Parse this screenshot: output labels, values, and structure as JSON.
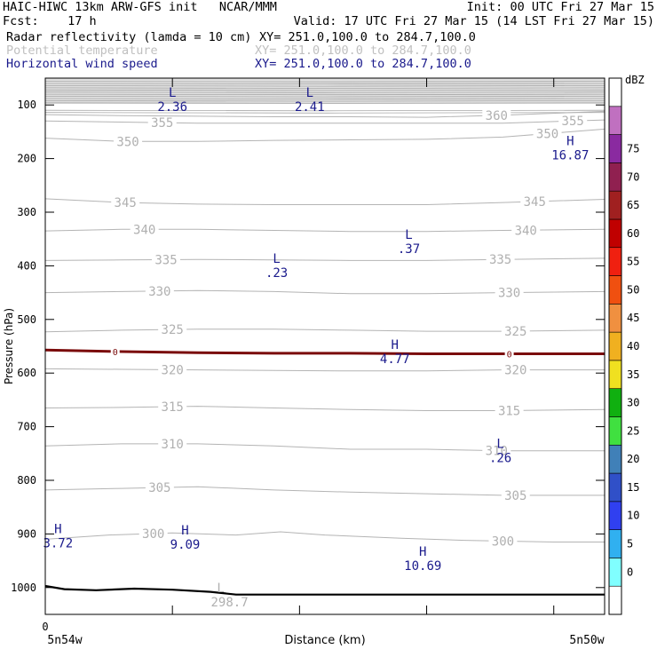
{
  "header": {
    "left_line1": "HAIC-HIWC 13km ARW-GFS init   NCAR/MMM",
    "left_line2": "Fcst:    17 h",
    "right_line1": "Init: 00 UTC Fri 27 Mar 15",
    "right_line2": "Valid: 17 UTC Fri 27 Mar 15 (14 LST Fri 27 Mar 15)",
    "fields": [
      {
        "name": "Radar reflectivity (lamda = 10 cm)",
        "xy": "XY= 251.0,100.0 to 284.7,100.0",
        "color": "#000000"
      },
      {
        "name": "Potential temperature",
        "xy": "XY= 251.0,100.0 to 284.7,100.0",
        "color": "#c0c0c0"
      },
      {
        "name": "Horizontal wind speed",
        "xy": "XY= 251.0,100.0 to 284.7,100.0",
        "color": "#1a1a8c"
      }
    ]
  },
  "chart_data": {
    "type": "contour-cross-section",
    "ylabel": "Pressure (hPa)",
    "xlabel": "Distance (km)",
    "x_tick_label": "0",
    "x_left_label": "5n54w",
    "x_right_label": "5n50w",
    "y_reversed": true,
    "ylim": [
      1050,
      50
    ],
    "xlim": [
      0,
      440
    ],
    "y_ticks": [
      100,
      200,
      300,
      400,
      500,
      600,
      700,
      800,
      900,
      1000
    ],
    "x_ticks": [
      0,
      100,
      200,
      300,
      400
    ],
    "theta_contours": [
      {
        "value": 300,
        "labels": [
          {
            "x": 85,
            "text": "300"
          },
          {
            "x": 360,
            "text": "300"
          }
        ],
        "points": [
          [
            0,
            910
          ],
          [
            50,
            902
          ],
          [
            100,
            898
          ],
          [
            150,
            902
          ],
          [
            185,
            896
          ],
          [
            220,
            902
          ],
          [
            280,
            908
          ],
          [
            330,
            912
          ],
          [
            400,
            915
          ],
          [
            440,
            915
          ]
        ]
      },
      {
        "value": 305,
        "labels": [
          {
            "x": 90,
            "text": "305"
          },
          {
            "x": 370,
            "text": "305"
          }
        ],
        "points": [
          [
            0,
            818
          ],
          [
            60,
            815
          ],
          [
            120,
            812
          ],
          [
            180,
            818
          ],
          [
            240,
            822
          ],
          [
            300,
            825
          ],
          [
            360,
            828
          ],
          [
            440,
            828
          ]
        ]
      },
      {
        "value": 310,
        "labels": [
          {
            "x": 100,
            "text": "310"
          },
          {
            "x": 355,
            "text": "310"
          }
        ],
        "points": [
          [
            0,
            736
          ],
          [
            60,
            732
          ],
          [
            120,
            732
          ],
          [
            180,
            736
          ],
          [
            240,
            742
          ],
          [
            300,
            742
          ],
          [
            360,
            745
          ],
          [
            440,
            745
          ]
        ]
      },
      {
        "value": 315,
        "labels": [
          {
            "x": 100,
            "text": "315"
          },
          {
            "x": 365,
            "text": "315"
          }
        ],
        "points": [
          [
            0,
            665
          ],
          [
            60,
            664
          ],
          [
            120,
            662
          ],
          [
            180,
            665
          ],
          [
            240,
            668
          ],
          [
            300,
            670
          ],
          [
            360,
            670
          ],
          [
            440,
            668
          ]
        ]
      },
      {
        "value": 320,
        "labels": [
          {
            "x": 100,
            "text": "320"
          },
          {
            "x": 370,
            "text": "320"
          }
        ],
        "points": [
          [
            0,
            592
          ],
          [
            60,
            593
          ],
          [
            120,
            594
          ],
          [
            180,
            595
          ],
          [
            240,
            596
          ],
          [
            300,
            596
          ],
          [
            360,
            594
          ],
          [
            440,
            594
          ]
        ]
      },
      {
        "value": 325,
        "labels": [
          {
            "x": 100,
            "text": "325"
          },
          {
            "x": 370,
            "text": "325"
          }
        ],
        "points": [
          [
            0,
            523
          ],
          [
            60,
            520
          ],
          [
            120,
            518
          ],
          [
            180,
            518
          ],
          [
            240,
            520
          ],
          [
            300,
            522
          ],
          [
            360,
            522
          ],
          [
            440,
            520
          ]
        ]
      },
      {
        "value": 330,
        "labels": [
          {
            "x": 90,
            "text": "330"
          },
          {
            "x": 365,
            "text": "330"
          }
        ],
        "points": [
          [
            0,
            450
          ],
          [
            60,
            448
          ],
          [
            120,
            446
          ],
          [
            180,
            448
          ],
          [
            240,
            452
          ],
          [
            300,
            452
          ],
          [
            360,
            450
          ],
          [
            440,
            448
          ]
        ]
      },
      {
        "value": 335,
        "labels": [
          {
            "x": 95,
            "text": "335"
          },
          {
            "x": 358,
            "text": "335"
          }
        ],
        "points": [
          [
            0,
            390
          ],
          [
            60,
            389
          ],
          [
            120,
            388
          ],
          [
            180,
            389
          ],
          [
            240,
            390
          ],
          [
            300,
            390
          ],
          [
            360,
            388
          ],
          [
            440,
            386
          ]
        ]
      },
      {
        "value": 340,
        "labels": [
          {
            "x": 78,
            "text": "340"
          },
          {
            "x": 378,
            "text": "340"
          }
        ],
        "points": [
          [
            0,
            335
          ],
          [
            60,
            332
          ],
          [
            120,
            332
          ],
          [
            180,
            334
          ],
          [
            240,
            336
          ],
          [
            300,
            336
          ],
          [
            360,
            334
          ],
          [
            440,
            332
          ]
        ]
      },
      {
        "value": 345,
        "labels": [
          {
            "x": 63,
            "text": "345"
          },
          {
            "x": 385,
            "text": "345"
          }
        ],
        "points": [
          [
            0,
            275
          ],
          [
            60,
            282
          ],
          [
            120,
            285
          ],
          [
            180,
            286
          ],
          [
            240,
            286
          ],
          [
            300,
            286
          ],
          [
            360,
            282
          ],
          [
            440,
            276
          ]
        ]
      },
      {
        "value": 350,
        "labels": [
          {
            "x": 65,
            "text": "350"
          },
          {
            "x": 395,
            "text": "350"
          }
        ],
        "points": [
          [
            0,
            162
          ],
          [
            60,
            168
          ],
          [
            120,
            168
          ],
          [
            180,
            166
          ],
          [
            240,
            165
          ],
          [
            300,
            164
          ],
          [
            360,
            160
          ],
          [
            440,
            145
          ]
        ]
      },
      {
        "value": 355,
        "labels": [
          {
            "x": 92,
            "text": "355"
          },
          {
            "x": 415,
            "text": "355"
          }
        ],
        "points": [
          [
            0,
            130
          ],
          [
            60,
            132
          ],
          [
            120,
            134
          ],
          [
            180,
            134
          ],
          [
            240,
            134
          ],
          [
            300,
            134
          ],
          [
            360,
            134
          ],
          [
            440,
            128
          ]
        ]
      },
      {
        "value": 360,
        "labels": [
          {
            "x": 355,
            "text": "360"
          }
        ],
        "points": [
          [
            0,
            118
          ],
          [
            60,
            120
          ],
          [
            120,
            121
          ],
          [
            180,
            122
          ],
          [
            240,
            122
          ],
          [
            300,
            123
          ],
          [
            360,
            119
          ],
          [
            440,
            112
          ]
        ]
      }
    ],
    "upper_contour_levels": [
      96,
      92,
      88,
      84,
      80,
      76,
      72,
      68,
      64,
      60,
      56,
      110,
      114
    ],
    "zero_dbz_contour": {
      "label": "0",
      "label_x": [
        55,
        365
      ],
      "points": [
        [
          0,
          557
        ],
        [
          60,
          560
        ],
        [
          120,
          562
        ],
        [
          180,
          563
        ],
        [
          240,
          563
        ],
        [
          300,
          564
        ],
        [
          360,
          564
        ],
        [
          440,
          564
        ]
      ]
    },
    "surface": {
      "points": [
        [
          0,
          997
        ],
        [
          15,
          1003
        ],
        [
          40,
          1005
        ],
        [
          70,
          1002
        ],
        [
          100,
          1004
        ],
        [
          130,
          1008
        ],
        [
          150,
          1013
        ],
        [
          200,
          1013
        ],
        [
          300,
          1013
        ],
        [
          440,
          1013
        ]
      ]
    },
    "wind_extrema": [
      {
        "type": "L",
        "value": "2.36",
        "x": 100,
        "y": 88
      },
      {
        "type": "L",
        "value": "2.41",
        "x": 208,
        "y": 88
      },
      {
        "type": "H",
        "value": "16.87",
        "x": 413,
        "y": 178
      },
      {
        "type": "L",
        "value": ".37",
        "x": 286,
        "y": 353
      },
      {
        "type": "L",
        "value": ".23",
        "x": 182,
        "y": 398
      },
      {
        "type": "H",
        "value": "4.77",
        "x": 275,
        "y": 558
      },
      {
        "type": "L",
        "value": ".26",
        "x": 358,
        "y": 743
      },
      {
        "type": "H",
        "value": "3.72",
        "x": 10,
        "y": 902
      },
      {
        "type": "H",
        "value": "9.09",
        "x": 110,
        "y": 904
      },
      {
        "type": "H",
        "value": "10.69",
        "x": 297,
        "y": 944
      }
    ],
    "theta_extrema": [
      {
        "type": "L",
        "value": "298.7",
        "x": 138,
        "y": 1012
      }
    ],
    "colorbar": {
      "title": "dBZ",
      "levels": [
        "0",
        "5",
        "10",
        "15",
        "20",
        "25",
        "30",
        "35",
        "40",
        "45",
        "50",
        "55",
        "60",
        "65",
        "70",
        "75"
      ],
      "colors": [
        "#ffffff",
        "#80ffff",
        "#30b0f0",
        "#3040f0",
        "#3050c8",
        "#4080b8",
        "#40e040",
        "#10b010",
        "#f0e020",
        "#f0b020",
        "#f09040",
        "#f05010",
        "#f02010",
        "#c00000",
        "#a02020",
        "#902050",
        "#8a2aa0",
        "#c070c0",
        "#ffffff"
      ]
    }
  }
}
